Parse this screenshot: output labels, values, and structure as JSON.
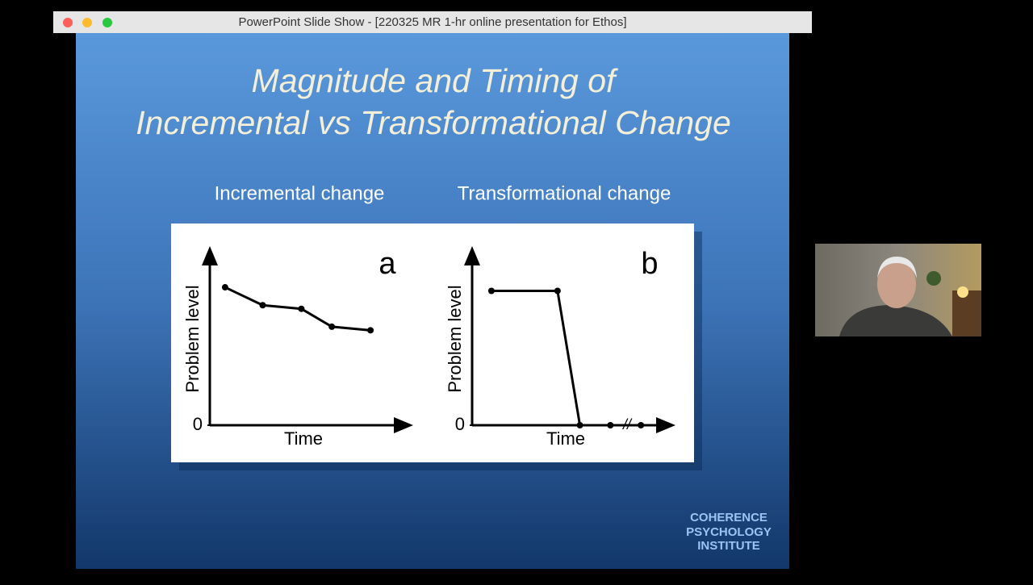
{
  "window": {
    "title": "PowerPoint Slide Show - [220325 MR 1-hr online presentation for Ethos]"
  },
  "slide": {
    "title_lines": [
      "Magnitude and Timing of",
      "Incremental vs Transformational Change"
    ],
    "logo_lines": [
      "COHERENCE",
      "PSYCHOLOGY",
      "INSTITUTE"
    ]
  },
  "chart_data": [
    {
      "type": "line",
      "title": "Incremental change",
      "panel_label": "a",
      "x_label": "Time",
      "y_label": "Problem level",
      "x": [
        0.75,
        2.6,
        4.5,
        6.0,
        7.9
      ],
      "values": [
        7.7,
        6.7,
        6.5,
        5.5,
        5.3
      ],
      "color": "#000000",
      "xlim": [
        0,
        10
      ],
      "ylim": [
        0,
        10
      ],
      "yticks": [
        0
      ]
    },
    {
      "type": "line",
      "title": "Transformational change",
      "panel_label": "b",
      "x_label": "Time",
      "y_label": "Problem level",
      "x": [
        0.95,
        4.2,
        5.3,
        6.8,
        8.3
      ],
      "values": [
        7.5,
        7.5,
        0,
        0,
        0
      ],
      "color": "#000000",
      "xlim": [
        0,
        10
      ],
      "ylim": [
        0,
        10
      ],
      "yticks": [
        0
      ]
    }
  ]
}
